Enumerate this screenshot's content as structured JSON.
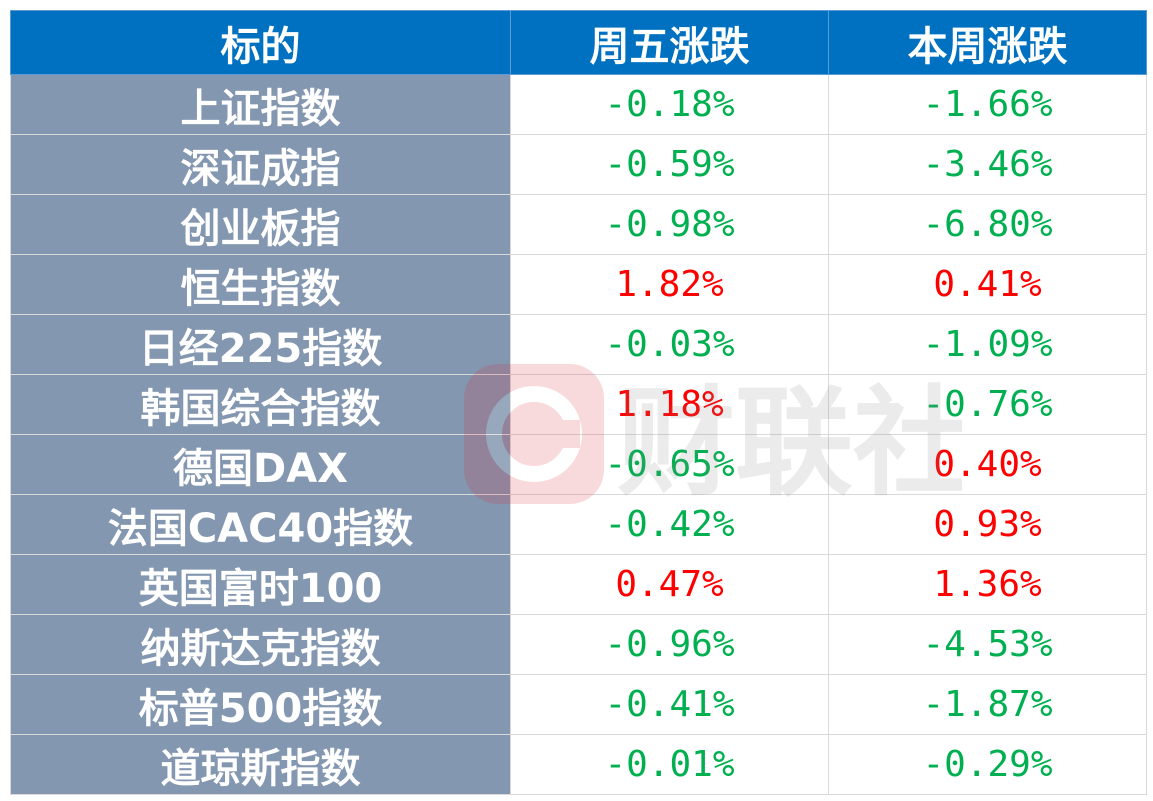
{
  "headers": [
    "标的",
    "周五涨跌",
    "本周涨跌"
  ],
  "rows": [
    {
      "name": "上证指数",
      "fri": "-0.18%",
      "week": "-1.66%"
    },
    {
      "name": "深证成指",
      "fri": "-0.59%",
      "week": "-3.46%"
    },
    {
      "name": "创业板指",
      "fri": "-0.98%",
      "week": "-6.80%"
    },
    {
      "name": "恒生指数",
      "fri": "1.82%",
      "week": "0.41%"
    },
    {
      "name": "日经225指数",
      "fri": "-0.03%",
      "week": "-1.09%"
    },
    {
      "name": "韩国综合指数",
      "fri": "1.18%",
      "week": "-0.76%"
    },
    {
      "name": "德国DAX",
      "fri": "-0.65%",
      "week": "0.40%"
    },
    {
      "name": "法国CAC40指数",
      "fri": "-0.42%",
      "week": "0.93%"
    },
    {
      "name": "英国富时100",
      "fri": "0.47%",
      "week": "1.36%"
    },
    {
      "name": "纳斯达克指数",
      "fri": "-0.96%",
      "week": "-4.53%"
    },
    {
      "name": "标普500指数",
      "fri": "-0.41%",
      "week": "-1.87%"
    },
    {
      "name": "道琼斯指数",
      "fri": "-0.01%",
      "week": "-0.29%"
    }
  ],
  "colors": {
    "header_bg": "#0070c0",
    "name_bg": "#8497b0",
    "up": "#ff0000",
    "down": "#00b050"
  },
  "watermark": {
    "text": "财联社",
    "icon": "cls-logo-icon"
  }
}
